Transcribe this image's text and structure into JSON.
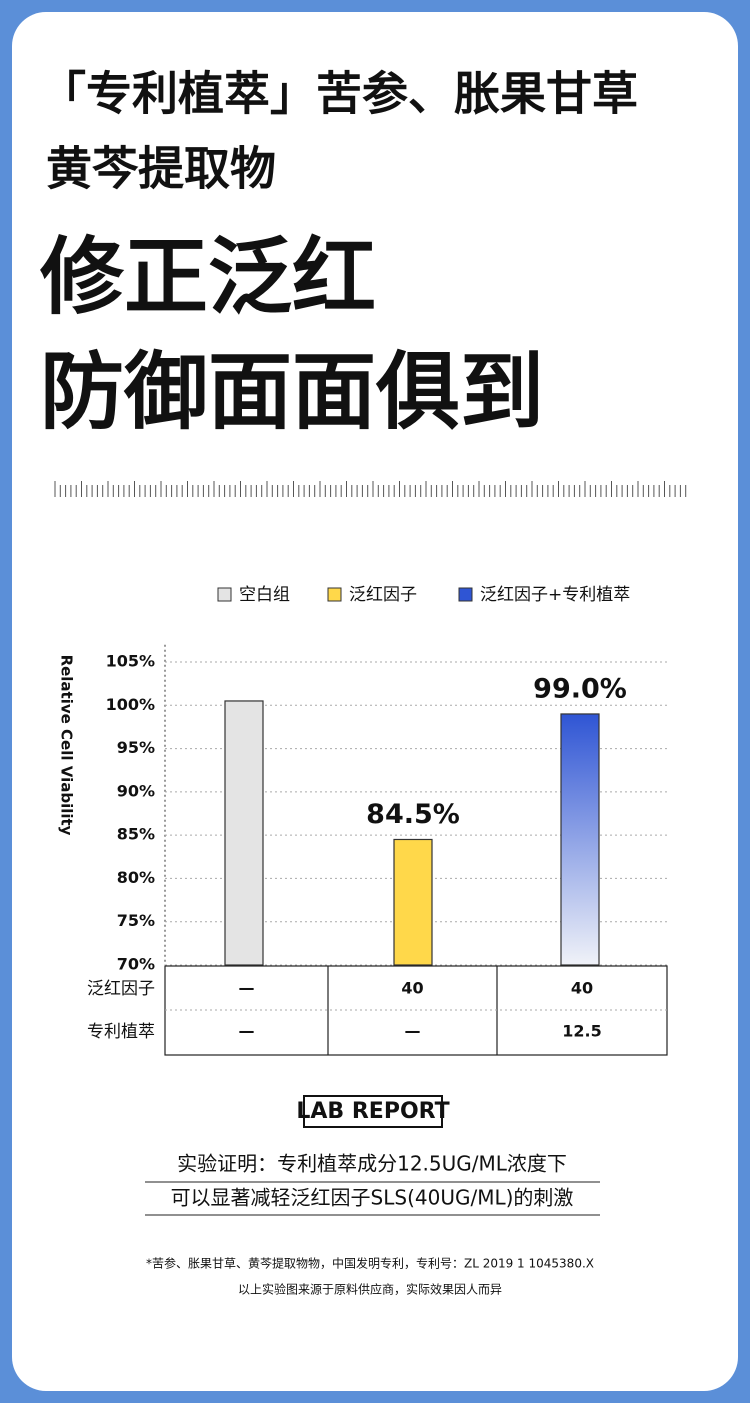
{
  "header": {
    "line1": "「专利植萃」苦参、胀果甘草",
    "line2": "黄芩提取物",
    "headline1": "修正泛红",
    "headline2": "防御面面俱到"
  },
  "chart_data": {
    "type": "bar",
    "y_label": "Relative Cell Viability",
    "categories": [
      null,
      null,
      null
    ],
    "series": [
      {
        "name": "空白组",
        "color": "#e4e4e4",
        "values": [
          100.5,
          null,
          null
        ]
      },
      {
        "name": "泛红因子",
        "color": "#ffd84a",
        "values": [
          null,
          84.5,
          null
        ],
        "value_labels": [
          null,
          "84.5%",
          null
        ]
      },
      {
        "name": "泛红因子+专利植萃",
        "color": "#2f55d4",
        "values": [
          null,
          null,
          99.0
        ],
        "value_labels": [
          null,
          null,
          "99.0%"
        ]
      }
    ],
    "ylim": [
      70,
      107
    ],
    "yticks": [
      {
        "value": 70,
        "label": "70%"
      },
      {
        "value": 75,
        "label": "75%"
      },
      {
        "value": 80,
        "label": "80%"
      },
      {
        "value": 85,
        "label": "85%"
      },
      {
        "value": 90,
        "label": "90%"
      },
      {
        "value": 95,
        "label": "95%"
      },
      {
        "value": 100,
        "label": "100%"
      },
      {
        "value": 105,
        "label": "105%"
      }
    ],
    "grid": true,
    "legend": "top"
  },
  "table": {
    "rows": [
      [
        "泛红因子",
        "—",
        "40",
        "40"
      ],
      [
        "专利植萃",
        "—",
        "—",
        "12.5"
      ]
    ]
  },
  "footer": {
    "badge": "LAB REPORT",
    "conclusion": [
      "实验证明：专利植萃成分12.5UG/ML浓度下",
      "可以显著减轻泛红因子SLS(40UG/ML)的刺激"
    ],
    "notes": [
      "*苦参、胀果甘草、黄芩提取物物，中国发明专利，专利号：ZL 2019 1 1045380.X",
      "以上实验图来源于原料供应商，实际效果因人而异"
    ]
  }
}
